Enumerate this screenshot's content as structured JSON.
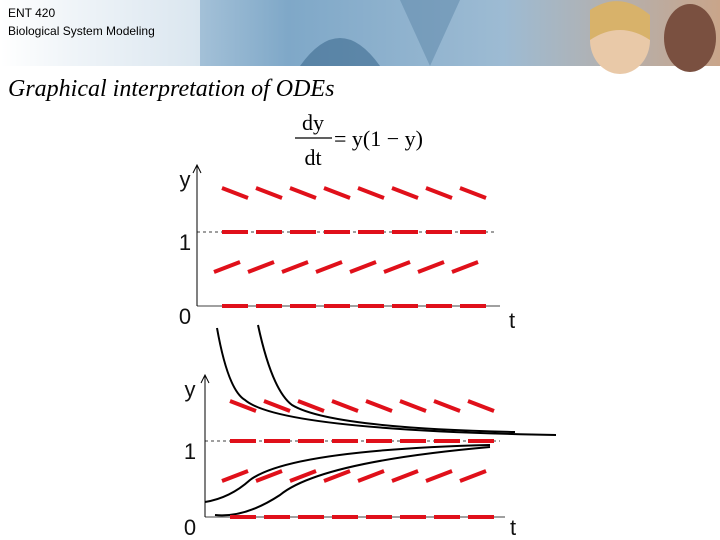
{
  "header": {
    "course": "ENT 420",
    "subtitle": "Biological System Modeling"
  },
  "title": "Graphical interpretation of ODEs",
  "equation": {
    "numerator": "dy",
    "denominator": "dt",
    "rhs": "= y(1 − y)"
  },
  "diagrams": [
    {
      "y_label": "y",
      "one_label": "1",
      "zero_label": "0",
      "t_label": "t"
    },
    {
      "y_label": "y",
      "one_label": "1",
      "zero_label": "0",
      "t_label": "t"
    }
  ]
}
